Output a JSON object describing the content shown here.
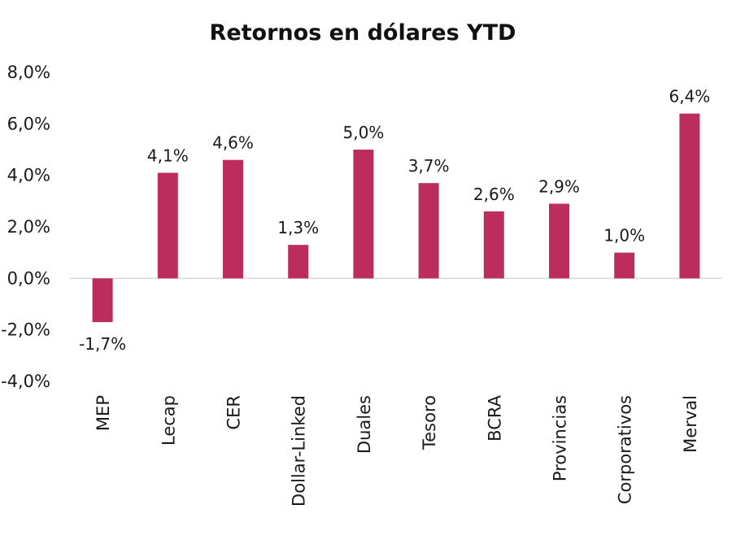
{
  "chart_data": {
    "type": "bar",
    "title": "Retornos en dólares YTD",
    "xlabel": "",
    "ylabel": "",
    "categories": [
      "MEP",
      "Lecap",
      "CER",
      "Dollar-Linked",
      "Duales",
      "Tesoro",
      "BCRA",
      "Provincias",
      "Corporativos",
      "Merval"
    ],
    "values": [
      -1.7,
      4.1,
      4.6,
      1.3,
      5.0,
      3.7,
      2.6,
      2.9,
      1.0,
      6.4
    ],
    "data_labels": [
      "-1,7%",
      "4,1%",
      "4,6%",
      "1,3%",
      "5,0%",
      "3,7%",
      "2,6%",
      "2,9%",
      "1,0%",
      "6,4%"
    ],
    "ylim": [
      -4,
      8
    ],
    "yticks": [
      8,
      6,
      4,
      2,
      0,
      -2,
      -4
    ],
    "ytick_labels": [
      "8,0%",
      "6,0%",
      "4,0%",
      "2,0%",
      "0,0%",
      "-2,0%",
      "-4,0%"
    ],
    "grid": false,
    "legend": "none",
    "bar_color": "#BC2D5E",
    "axis_color": "#D9D9D9"
  }
}
